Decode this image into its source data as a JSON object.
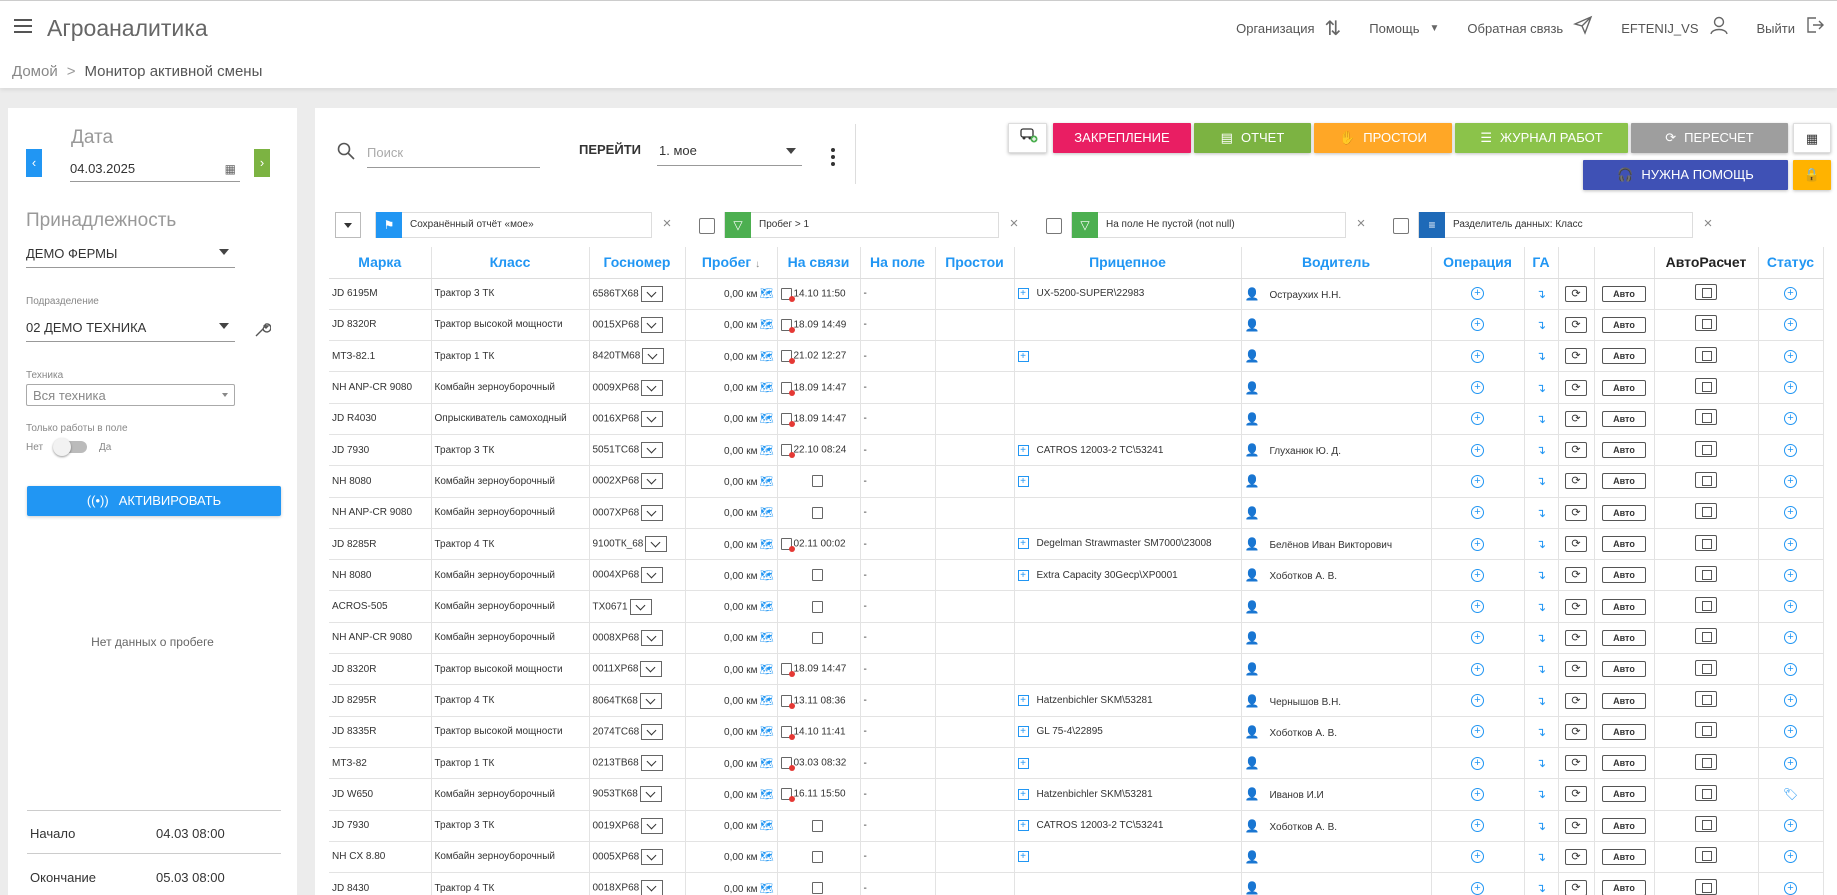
{
  "app": {
    "title": "Агроаналитика"
  },
  "header": {
    "organization": "Организация",
    "help": "Помощь",
    "feedback": "Обратная связь",
    "user": "EFTENIJ_VS",
    "logout": "Выйти"
  },
  "breadcrumb": {
    "home": "Домой",
    "current": "Монитор активной смены"
  },
  "sidebar": {
    "date_label": "Дата",
    "date_value": "04.03.2025",
    "ownership_label": "Принадлежность",
    "ownership_value": "ДЕМО ФЕРМЫ",
    "subdivision_label": "Подразделение",
    "subdivision_value": "02 ДЕМО ТЕХНИКА",
    "equipment_label": "Техника",
    "equipment_value": "Вся техника",
    "field_only_label": "Только работы в поле",
    "toggle_no": "Нет",
    "toggle_yes": "Да",
    "activate_label": "АКТИВИРОВАТЬ",
    "no_data": "Нет данных о пробеге",
    "start_label": "Начало",
    "start_value": "04.03 08:00",
    "end_label": "Окончание",
    "end_value": "05.03 08:00"
  },
  "toolbar": {
    "search_placeholder": "Поиск",
    "go_label": "ПЕРЕЙТИ",
    "view_value": "1. мое",
    "btn_pin": "ЗАКРЕПЛЕНИЕ",
    "btn_report": "ОТЧЕТ",
    "btn_idle": "ПРОСТОИ",
    "btn_log": "ЖУРНАЛ РАБОТ",
    "btn_recalc": "ПЕРЕСЧЕТ",
    "btn_help": "НУЖНА ПОМОЩЬ",
    "colors": {
      "pin": "#e91e63",
      "report": "#7cb342",
      "idle": "#ffa726",
      "log": "#8bc34a",
      "recalc": "#9e9e9e",
      "help": "#3f51b5",
      "lock": "#ffb300"
    }
  },
  "filters": {
    "saved": "Сохранённый отчёт «мое»",
    "mileage": "Пробег > 1",
    "on_field": "На поле Не пустой (not null)",
    "separator": "Разделитель данных: Класс"
  },
  "columns": {
    "make": "Марка",
    "class": "Класс",
    "plate": "Госномер",
    "mileage": "Пробег",
    "online": "На связи",
    "on_field": "На поле",
    "idle": "Простои",
    "trailer": "Прицепное",
    "driver": "Водитель",
    "operation": "Операция",
    "ga": "ГА",
    "autocalc": "АвтоРасчет",
    "status": "Статус"
  },
  "common": {
    "auto": "Авто",
    "dash": "-"
  },
  "rows": [
    {
      "make": "JD 6195M",
      "class": "Трактор 3 ТК",
      "plate": "6586ТХ68",
      "mileage": "0,00 км",
      "map": true,
      "sig_red": true,
      "online": "14.10 11:50",
      "trailer_plus": true,
      "trailer": "UX-5200-SUPER\\22983",
      "driver": "Остраухих Н.Н.",
      "status": "plus"
    },
    {
      "make": "JD 8320R",
      "class": "Трактор высокой мощности",
      "plate": "0015ХР68",
      "mileage": "0,00 км",
      "map": true,
      "sig_red": true,
      "online": "18.09 14:49",
      "trailer_plus": false,
      "trailer": "",
      "driver": "",
      "status": "plus"
    },
    {
      "make": "МТЗ-82.1",
      "class": "Трактор 1 ТК",
      "plate": "8420ТМ68",
      "mileage": "0,00 км",
      "map": true,
      "sig_red": true,
      "online": "21.02 12:27",
      "trailer_plus": true,
      "trailer": "",
      "driver": "",
      "status": "plus"
    },
    {
      "make": "NH ANP-CR 9080",
      "class": "Комбайн зерноуборочный",
      "plate": "0009ХР68",
      "mileage": "0,00 км",
      "map": true,
      "sig_red": true,
      "online": "18.09 14:47",
      "trailer_plus": false,
      "trailer": "",
      "driver": "",
      "status": "plus"
    },
    {
      "make": "JD R4030",
      "class": "Опрыскиватель самоходный",
      "plate": "0016ХР68",
      "mileage": "0,00 км",
      "map": true,
      "sig_red": true,
      "online": "18.09 14:47",
      "trailer_plus": false,
      "trailer": "",
      "driver": "",
      "status": "plus"
    },
    {
      "make": "JD 7930",
      "class": "Трактор 3 ТК",
      "plate": "5051ТС68",
      "mileage": "0,00 км",
      "map": true,
      "sig_red": true,
      "online": "22.10 08:24",
      "trailer_plus": true,
      "trailer": "CATROS 12003-2 TC\\53241",
      "driver": "Глуханюк Ю. Д.",
      "status": "plus"
    },
    {
      "make": "NH 8080",
      "class": "Комбайн зерноуборочный",
      "plate": "0002ХР68",
      "mileage": "0,00 км",
      "map": true,
      "sig_red": false,
      "online": "",
      "trailer_plus": true,
      "trailer": "",
      "driver": "",
      "status": "plus"
    },
    {
      "make": "NH ANP-CR 9080",
      "class": "Комбайн зерноуборочный",
      "plate": "0007ХР68",
      "mileage": "0,00 км",
      "map": true,
      "sig_red": false,
      "online": "",
      "trailer_plus": false,
      "trailer": "",
      "driver": "",
      "status": "plus"
    },
    {
      "make": "JD 8285R",
      "class": "Трактор 4 ТК",
      "plate": "9100ТК_68",
      "mileage": "0,00 км",
      "map": true,
      "sig_red": true,
      "online": "02.11 00:02",
      "trailer_plus": true,
      "trailer": "Degelman Strawmaster SM7000\\23008",
      "driver": "Белёнов Иван Викторович",
      "status": "plus"
    },
    {
      "make": "NH 8080",
      "class": "Комбайн зерноуборочный",
      "plate": "0004ХР68",
      "mileage": "0,00 км",
      "map": true,
      "sig_red": false,
      "online": "",
      "trailer_plus": true,
      "trailer": "Extra Capacity 30Gecp\\XP0001",
      "driver": "Хоботков А. В.",
      "status": "plus"
    },
    {
      "make": "ACROS-505",
      "class": "Комбайн зерноуборочный",
      "plate": "ТХ0671",
      "mileage": "0,00 км",
      "map": true,
      "sig_red": false,
      "online": "",
      "trailer_plus": false,
      "trailer": "",
      "driver": "",
      "status": "plus"
    },
    {
      "make": "NH ANP-CR 9080",
      "class": "Комбайн зерноуборочный",
      "plate": "0008ХР68",
      "mileage": "0,00 км",
      "map": true,
      "sig_red": false,
      "online": "",
      "trailer_plus": false,
      "trailer": "",
      "driver": "",
      "status": "plus"
    },
    {
      "make": "JD 8320R",
      "class": "Трактор высокой мощности",
      "plate": "0011ХР68",
      "mileage": "0,00 км",
      "map": true,
      "sig_red": true,
      "online": "18.09 14:47",
      "trailer_plus": false,
      "trailer": "",
      "driver": "",
      "status": "plus"
    },
    {
      "make": "JD 8295R",
      "class": "Трактор 4 ТК",
      "plate": "8064ТК68",
      "mileage": "0,00 км",
      "map": true,
      "sig_red": true,
      "online": "13.11 08:36",
      "trailer_plus": true,
      "trailer": "Hatzenbichler SKM\\53281",
      "driver": "Чернышов В.Н.",
      "status": "plus"
    },
    {
      "make": "JD 8335R",
      "class": "Трактор высокой мощности",
      "plate": "2074ТС68",
      "mileage": "0,00 км",
      "map": true,
      "sig_red": true,
      "online": "14.10 11:41",
      "trailer_plus": true,
      "trailer": "GL 75-4\\22895",
      "driver": "Хоботков А. В.",
      "status": "plus"
    },
    {
      "make": "МТЗ-82",
      "class": "Трактор 1 ТК",
      "plate": "0213ТВ68",
      "mileage": "0,00 км",
      "map": true,
      "sig_red": true,
      "online": "03.03 08:32",
      "trailer_plus": true,
      "trailer": "",
      "driver": "",
      "status": "plus"
    },
    {
      "make": "JD W650",
      "class": "Комбайн зерноуборочный",
      "plate": "9053ТК68",
      "mileage": "0,00 км",
      "map": true,
      "sig_red": true,
      "online": "16.11 15:50",
      "trailer_plus": true,
      "trailer": "Hatzenbichler SKM\\53281",
      "driver": "Иванов И.И",
      "status": "tag"
    },
    {
      "make": "JD 7930",
      "class": "Трактор 3 ТК",
      "plate": "0019ХР68",
      "mileage": "0,00 км",
      "map": true,
      "sig_red": false,
      "online": "",
      "trailer_plus": true,
      "trailer": "CATROS 12003-2 TC\\53241",
      "driver": "Хоботков А. В.",
      "status": "plus"
    },
    {
      "make": "NH CX 8.80",
      "class": "Комбайн зерноуборочный",
      "plate": "0005ХР68",
      "mileage": "0,00 км",
      "map": true,
      "sig_red": false,
      "online": "",
      "trailer_plus": true,
      "trailer": "",
      "driver": "",
      "status": "plus"
    },
    {
      "make": "JD 8430",
      "class": "Трактор 4 ТК",
      "plate": "0018ХР68",
      "mileage": "0,00 км",
      "map": true,
      "sig_red": false,
      "online": "",
      "trailer_plus": false,
      "trailer": "",
      "driver": "",
      "status": "plus"
    }
  ]
}
